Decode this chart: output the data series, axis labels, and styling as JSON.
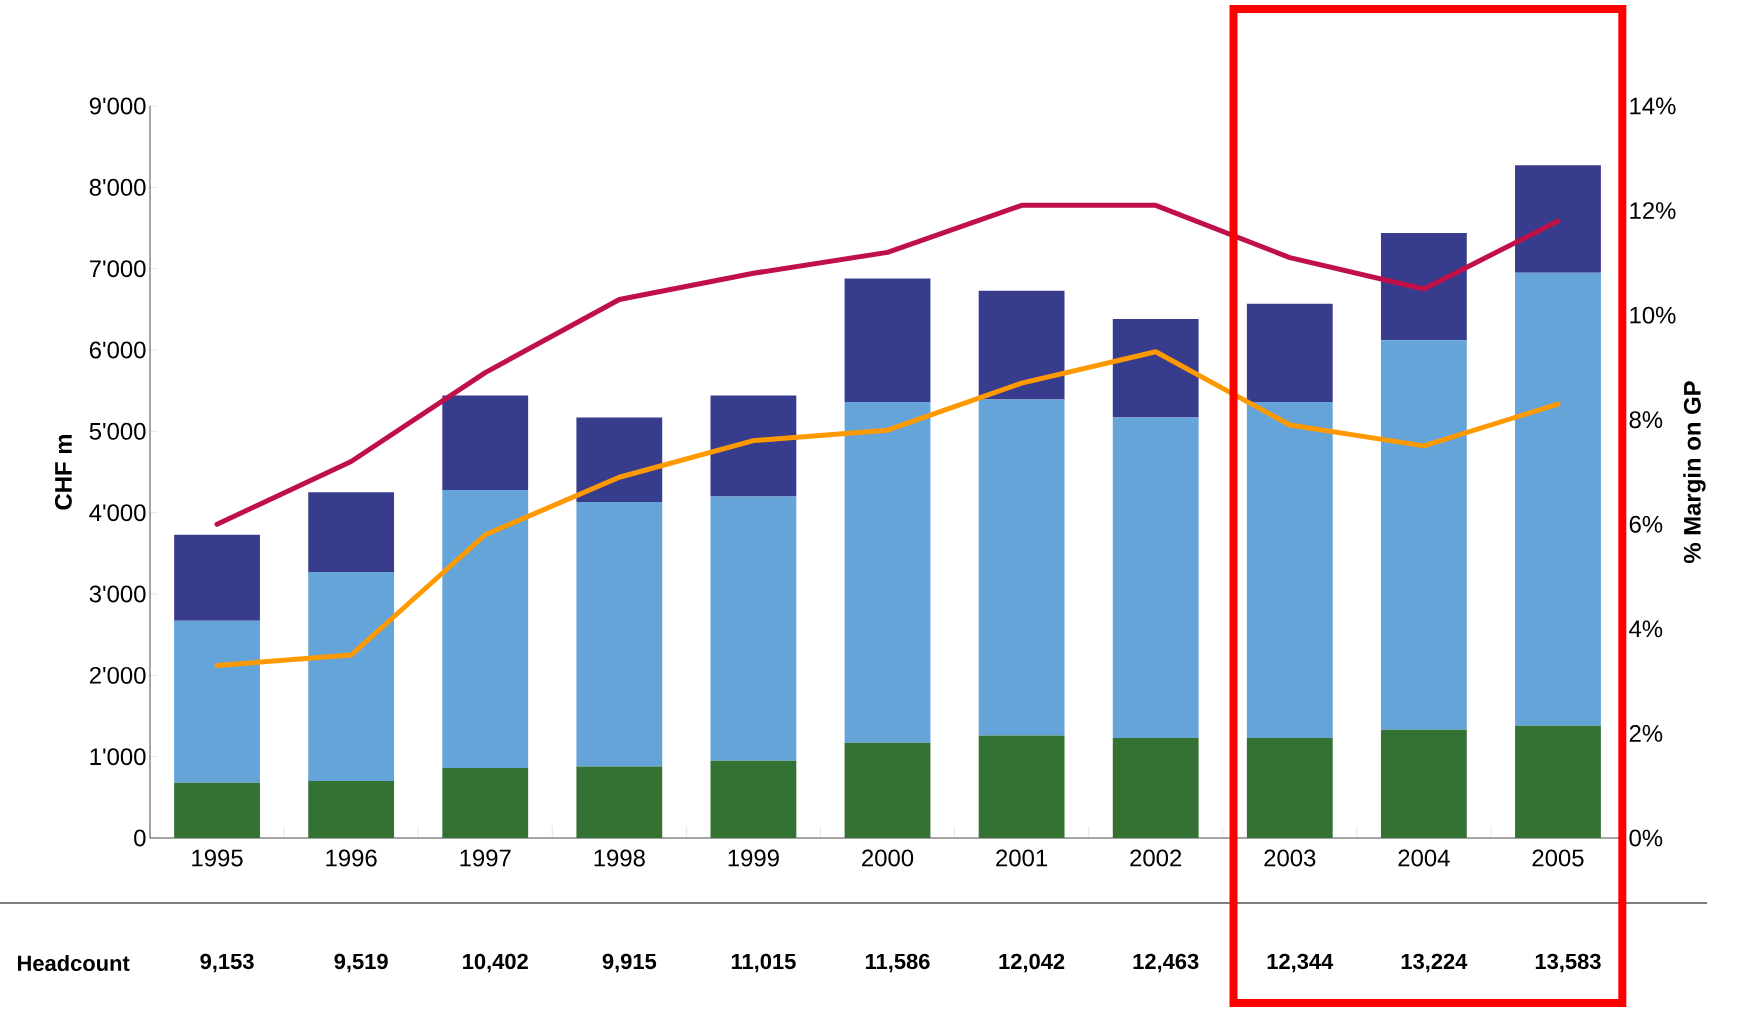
{
  "chart_data": {
    "type": "bar",
    "stacked": true,
    "ylabel": "CHF m",
    "y2label": "% Margin on GP",
    "categories": [
      "1995",
      "1996",
      "1997",
      "1998",
      "1999",
      "2000",
      "2001",
      "2002",
      "2003",
      "2004",
      "2005"
    ],
    "series": [
      {
        "color": "#337233",
        "values": [
          680,
          700,
          860,
          880,
          950,
          1170,
          1260,
          1230,
          1230,
          1330,
          1380
        ]
      },
      {
        "color": "#64a4d9",
        "values": [
          1990,
          2570,
          3420,
          3250,
          3250,
          4190,
          4130,
          3940,
          4130,
          4790,
          5570
        ]
      },
      {
        "color": "#383c8c",
        "values": [
          1060,
          980,
          1160,
          1040,
          1240,
          1520,
          1340,
          1210,
          1210,
          1320,
          1320
        ]
      },
      {
        "type": "line",
        "axis": "y2",
        "color": "#c0104a",
        "values": [
          6.0,
          7.2,
          8.9,
          10.3,
          10.8,
          11.2,
          12.1,
          12.1,
          11.1,
          10.5,
          11.8
        ]
      },
      {
        "type": "line",
        "axis": "y2",
        "color": "#ff9900",
        "values": [
          3.3,
          3.5,
          5.8,
          6.9,
          7.6,
          7.8,
          8.7,
          9.3,
          7.9,
          7.5,
          8.3
        ]
      }
    ],
    "ylim": [
      0,
      9000
    ],
    "yticks": [
      0,
      {
        "value": 1000,
        "label": "1'000"
      },
      {
        "value": 2000,
        "label": "2'000"
      },
      {
        "value": 3000,
        "label": "3'000"
      },
      {
        "value": 4000,
        "label": "4'000"
      },
      {
        "value": 5000,
        "label": "5'000"
      },
      {
        "value": 6000,
        "label": "6'000"
      },
      {
        "value": 7000,
        "label": "7'000"
      },
      {
        "value": 8000,
        "label": "8'000"
      },
      {
        "value": 9000,
        "label": "9'000"
      }
    ],
    "y2lim": [
      0,
      14
    ],
    "y2ticks": [
      {
        "value": 0,
        "label": "0%"
      },
      {
        "value": 2,
        "label": "2%"
      },
      {
        "value": 4,
        "label": "4%"
      },
      {
        "value": 6,
        "label": "6%"
      },
      {
        "value": 8,
        "label": "8%"
      },
      {
        "value": 10,
        "label": "10%"
      },
      {
        "value": 12,
        "label": "12%"
      },
      {
        "value": 14,
        "label": "14%"
      }
    ],
    "annotations": [
      "Headcount",
      "9,153",
      "9,519",
      "10,402",
      "9,915",
      "11,015",
      "11,586",
      "12,042",
      "12,463",
      "12,344",
      "13,224",
      "13,583"
    ]
  }
}
